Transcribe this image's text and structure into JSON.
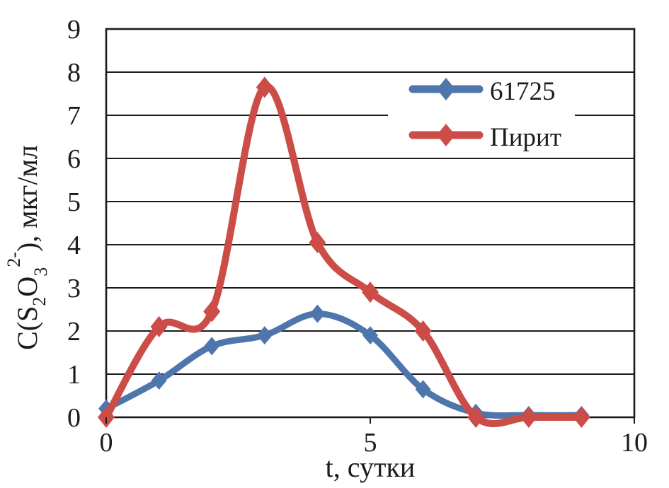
{
  "chart_data": {
    "type": "line",
    "title": "",
    "xlabel": "t, сутки",
    "ylabel": "C(S₂O₃²⁻), мкг/мл",
    "ylabel_parts": [
      "C(S",
      "2",
      "O",
      "3",
      "2-",
      "), мкг/мл"
    ],
    "x": [
      0,
      1,
      2,
      3,
      4,
      5,
      6,
      7,
      8,
      9
    ],
    "series": [
      {
        "name": "61725",
        "color": "#4e76ac",
        "marker": "diamond",
        "values": [
          0.2,
          0.85,
          1.65,
          1.9,
          2.4,
          1.9,
          0.65,
          0.1,
          0.05,
          0.05
        ]
      },
      {
        "name": "Пирит",
        "color": "#cc4c48",
        "marker": "diamond",
        "values": [
          0,
          2.1,
          2.45,
          7.65,
          4.05,
          2.9,
          2.0,
          0,
          0,
          0
        ]
      }
    ],
    "xlim": [
      0,
      10
    ],
    "ylim": [
      0,
      9
    ],
    "x_ticks": [
      0,
      5,
      10
    ],
    "y_ticks": [
      0,
      1,
      2,
      3,
      4,
      5,
      6,
      7,
      8,
      9
    ],
    "grid": "horizontal",
    "grid_color": "#1b1b1b",
    "axis_color": "#1b1b1b",
    "legend_position": "upper-right-inside",
    "legend_background": "#ffffff",
    "smooth": true
  }
}
